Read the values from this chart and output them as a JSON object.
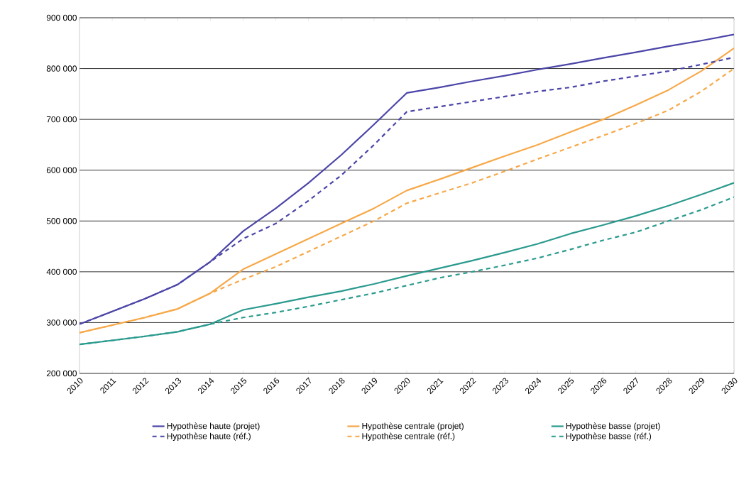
{
  "chart_data": {
    "type": "line",
    "categories": [
      "2010",
      "2011",
      "2012",
      "2013",
      "2014",
      "2015",
      "2016",
      "2017",
      "2018",
      "2019",
      "2020",
      "2021",
      "2022",
      "2023",
      "2024",
      "2025",
      "2026",
      "2027",
      "2028",
      "2029",
      "2030"
    ],
    "series": [
      {
        "name": "Hypothèse haute (projet)",
        "color": "#4b45a8",
        "line_style": "solid",
        "values": [
          297000,
          322000,
          347000,
          375000,
          420000,
          480000,
          525000,
          575000,
          630000,
          690000,
          752000,
          763000,
          775000,
          786000,
          798000,
          809000,
          821000,
          832000,
          844000,
          855000,
          867000
        ]
      },
      {
        "name": "Hypothèse centrale (projet)",
        "color": "#f7a847",
        "line_style": "solid",
        "values": [
          280000,
          295000,
          310000,
          327000,
          358000,
          405000,
          435000,
          465000,
          495000,
          525000,
          560000,
          582000,
          605000,
          628000,
          650000,
          675000,
          700000,
          728000,
          758000,
          795000,
          840000
        ]
      },
      {
        "name": "Hypothèse basse (projet)",
        "color": "#2a9a8e",
        "line_style": "solid",
        "values": [
          257000,
          265000,
          273000,
          282000,
          297000,
          325000,
          337000,
          350000,
          362000,
          376000,
          392000,
          407000,
          422000,
          438000,
          455000,
          475000,
          492000,
          510000,
          530000,
          552000,
          575000
        ]
      },
      {
        "name": "Hypothèse haute (réf.)",
        "color": "#4b45a8",
        "line_style": "dashed",
        "values": [
          297000,
          322000,
          347000,
          375000,
          420000,
          465000,
          495000,
          540000,
          590000,
          650000,
          715000,
          725000,
          735000,
          745000,
          755000,
          763000,
          775000,
          785000,
          795000,
          808000,
          822000
        ]
      },
      {
        "name": "Hypothèse centrale (réf.)",
        "color": "#f7a847",
        "line_style": "dashed",
        "values": [
          280000,
          295000,
          310000,
          327000,
          358000,
          385000,
          410000,
          440000,
          470000,
          500000,
          535000,
          555000,
          575000,
          598000,
          622000,
          645000,
          668000,
          692000,
          718000,
          755000,
          800000
        ]
      },
      {
        "name": "Hypothèse basse (réf.)",
        "color": "#2a9a8e",
        "line_style": "dashed",
        "values": [
          257000,
          265000,
          273000,
          282000,
          297000,
          310000,
          320000,
          332000,
          345000,
          358000,
          373000,
          388000,
          400000,
          413000,
          427000,
          444000,
          462000,
          478000,
          500000,
          522000,
          547000
        ]
      }
    ],
    "ylim": [
      200000,
      900000
    ],
    "yticks": [
      {
        "value": 200000,
        "label": "200 000"
      },
      {
        "value": 300000,
        "label": "300 000"
      },
      {
        "value": 400000,
        "label": "400 000"
      },
      {
        "value": 500000,
        "label": "500 000"
      },
      {
        "value": 600000,
        "label": "600 000"
      },
      {
        "value": 700000,
        "label": "700 000"
      },
      {
        "value": 800000,
        "label": "800 000"
      },
      {
        "value": 900000,
        "label": "900 000"
      }
    ],
    "grid": "y",
    "legend": "bottom",
    "marker": "none"
  }
}
